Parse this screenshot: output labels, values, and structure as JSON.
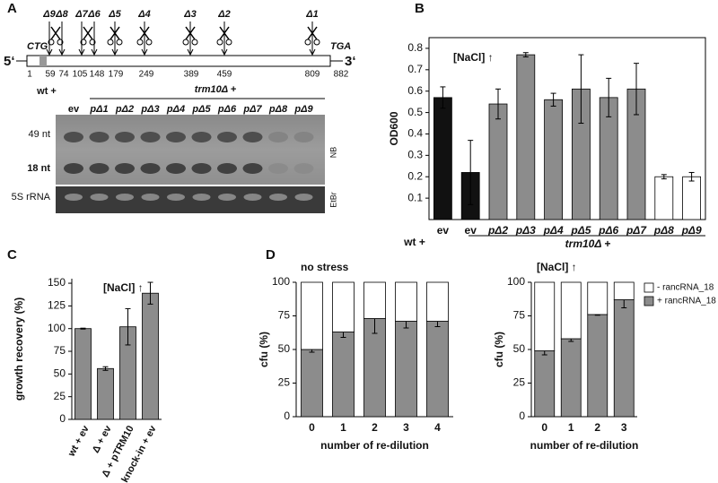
{
  "panel_labels": [
    "A",
    "B",
    "C",
    "D"
  ],
  "panel_a": {
    "five_prime": "5‘",
    "three_prime": "3‘",
    "start_codon": "CTG",
    "stop_codon": "TGA",
    "positions": [
      1,
      59,
      74,
      105,
      148,
      179,
      249,
      389,
      459,
      809,
      882
    ],
    "deletions": [
      "Δ9",
      "Δ8",
      "Δ7",
      "Δ6",
      "Δ5",
      "Δ4",
      "Δ3",
      "Δ2",
      "Δ1"
    ],
    "blot": {
      "group_labels": [
        "wt +",
        "trm10Δ +"
      ],
      "lanes": [
        "ev",
        "pΔ1",
        "pΔ2",
        "pΔ3",
        "pΔ4",
        "pΔ5",
        "pΔ6",
        "pΔ7",
        "pΔ8",
        "pΔ9"
      ],
      "band_labels": [
        "49 nt",
        "18 nt",
        "5S rRNA"
      ],
      "side_labels": [
        "NB",
        "EtBr"
      ]
    }
  },
  "chart_data": [
    {
      "type": "bar",
      "ylabel": "OD600",
      "annotation": "[NaCl] ↑",
      "categories": [
        "ev",
        "ev",
        "pΔ2",
        "pΔ3",
        "pΔ4",
        "pΔ5",
        "pΔ6",
        "pΔ7",
        "pΔ8",
        "pΔ9"
      ],
      "values": [
        0.57,
        0.22,
        0.54,
        0.77,
        0.56,
        0.61,
        0.57,
        0.61,
        0.2,
        0.2
      ],
      "errors": [
        0.05,
        0.15,
        0.07,
        0.01,
        0.03,
        0.16,
        0.09,
        0.12,
        0.01,
        0.02
      ],
      "colors": [
        "#111111",
        "#111111",
        "#8c8c8c",
        "#8c8c8c",
        "#8c8c8c",
        "#8c8c8c",
        "#8c8c8c",
        "#8c8c8c",
        "#ffffff",
        "#ffffff"
      ],
      "group_labels": [
        "wt +",
        "trm10Δ +"
      ],
      "ylim": [
        0,
        0.85
      ],
      "yticks": [
        0.1,
        0.2,
        0.3,
        0.4,
        0.5,
        0.6,
        0.7,
        0.8
      ]
    },
    {
      "type": "bar",
      "ylabel": "growth recovery (%)",
      "annotation": "[NaCl] ↑",
      "categories": [
        "wt + ev",
        "Δ + ev",
        "Δ + pTRM10",
        "knock-in + ev"
      ],
      "values": [
        100,
        56,
        102,
        139
      ],
      "errors": [
        0.5,
        2,
        20,
        12
      ],
      "color": "#8c8c8c",
      "ylim": [
        0,
        155
      ],
      "yticks": [
        0,
        25,
        50,
        75,
        100,
        125,
        150
      ]
    },
    {
      "type": "stacked_bar",
      "title": "no stress",
      "xlabel": "number of re-dilution",
      "ylabel": "cfu (%)",
      "categories": [
        "0",
        "1",
        "2",
        "3",
        "4"
      ],
      "series": [
        {
          "name": "+ rancRNA_18",
          "color": "#8c8c8c",
          "values": [
            50,
            63,
            73,
            71,
            71
          ],
          "errors": [
            2,
            4,
            11,
            5,
            4
          ]
        },
        {
          "name": "- rancRNA_18",
          "color": "#ffffff",
          "values": [
            50,
            37,
            27,
            29,
            29
          ]
        }
      ],
      "ylim": [
        0,
        100
      ],
      "yticks": [
        0,
        25,
        50,
        75,
        100
      ]
    },
    {
      "type": "stacked_bar",
      "title": "[NaCl] ↑",
      "xlabel": "number of re-dilution",
      "ylabel": "cfu (%)",
      "categories": [
        "0",
        "1",
        "2",
        "3"
      ],
      "series": [
        {
          "name": "+ rancRNA_18",
          "color": "#8c8c8c",
          "values": [
            49,
            58,
            76,
            87
          ],
          "errors": [
            3,
            2,
            0.5,
            6
          ]
        },
        {
          "name": "- rancRNA_18",
          "color": "#ffffff",
          "values": [
            51,
            42,
            24,
            13
          ]
        }
      ],
      "ylim": [
        0,
        100
      ],
      "yticks": [
        0,
        25,
        50,
        75,
        100
      ],
      "legend": "outside-right"
    }
  ]
}
